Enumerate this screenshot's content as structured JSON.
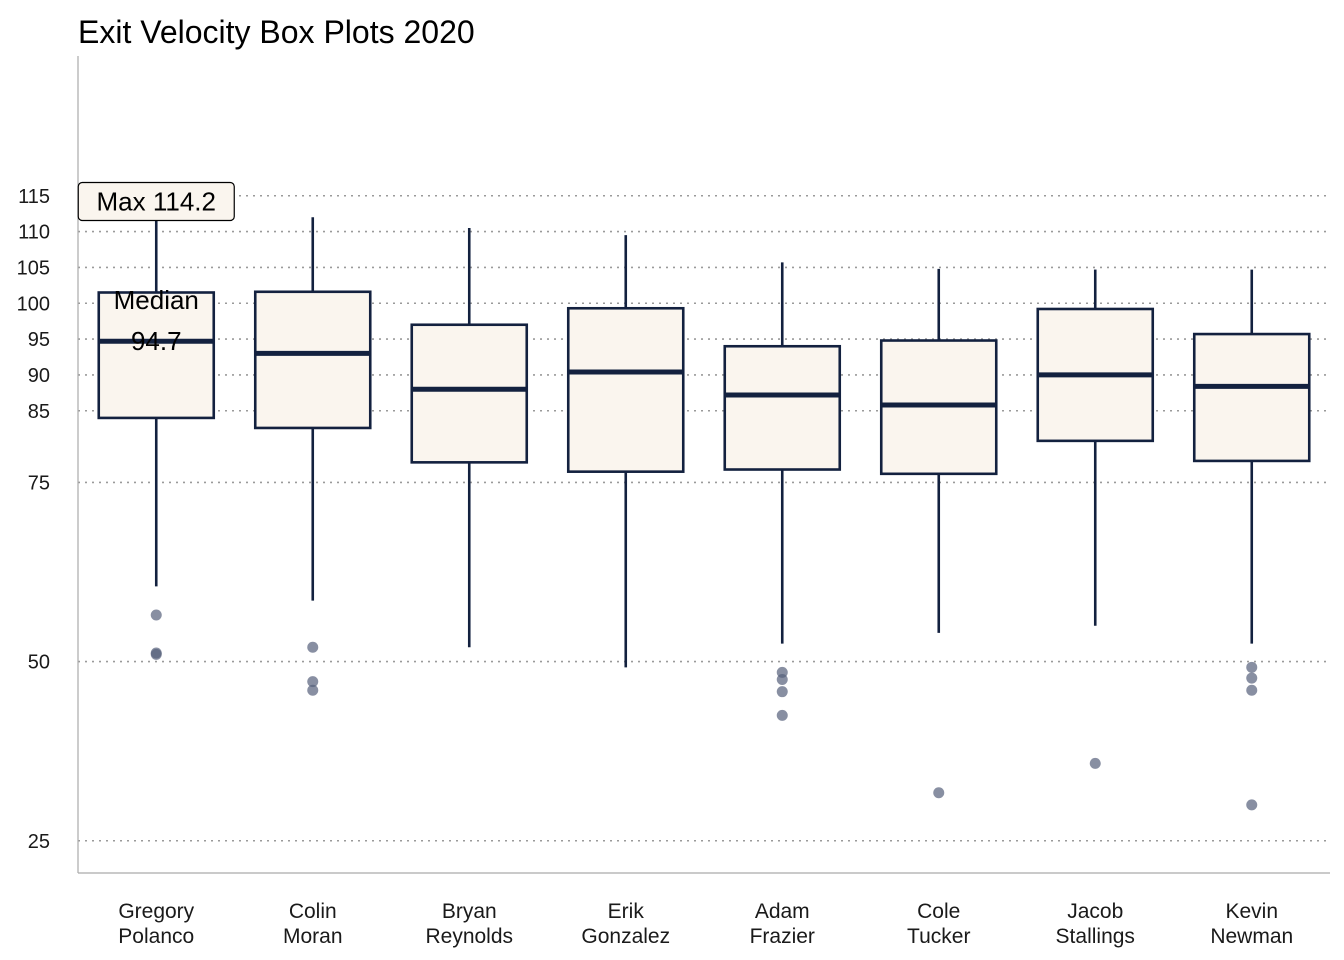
{
  "title": "Exit Velocity Box Plots 2020",
  "colors": {
    "box_fill": "#FAF5EE",
    "box_stroke": "#13213F",
    "outlier": "#56607A",
    "grid": "#9A9A9A",
    "annotation_fill": "#FAF5EE"
  },
  "chart_data": {
    "type": "box",
    "title": "Exit Velocity Box Plots 2020",
    "xlabel": "",
    "ylabel": "",
    "ylim": [
      20.5,
      134.5
    ],
    "yticks": [
      25,
      50,
      75,
      85,
      90,
      95,
      100,
      105,
      110,
      115
    ],
    "grid": "horizontal dotted",
    "categories": [
      [
        "Gregory",
        "Polanco"
      ],
      [
        "Colin",
        "Moran"
      ],
      [
        "Bryan",
        "Reynolds"
      ],
      [
        "Erik",
        "Gonzalez"
      ],
      [
        "Adam",
        "Frazier"
      ],
      [
        "Cole",
        "Tucker"
      ],
      [
        "Jacob",
        "Stallings"
      ],
      [
        "Kevin",
        "Newman"
      ]
    ],
    "boxes": [
      {
        "whisker_low": 60.5,
        "q1": 84.0,
        "median": 94.7,
        "q3": 101.5,
        "whisker_high": 114.2,
        "outliers": [
          56.5,
          51.0,
          51.2
        ]
      },
      {
        "whisker_low": 58.5,
        "q1": 82.6,
        "median": 93.0,
        "q3": 101.6,
        "whisker_high": 112.0,
        "outliers": [
          52.0,
          47.2,
          46.0
        ]
      },
      {
        "whisker_low": 52.0,
        "q1": 77.8,
        "median": 88.0,
        "q3": 97.0,
        "whisker_high": 110.5,
        "outliers": []
      },
      {
        "whisker_low": 49.2,
        "q1": 76.5,
        "median": 90.4,
        "q3": 99.3,
        "whisker_high": 109.5,
        "outliers": []
      },
      {
        "whisker_low": 52.5,
        "q1": 76.8,
        "median": 87.2,
        "q3": 94.0,
        "whisker_high": 105.7,
        "outliers": [
          48.5,
          47.5,
          45.8,
          42.5
        ]
      },
      {
        "whisker_low": 54.0,
        "q1": 76.2,
        "median": 85.8,
        "q3": 94.8,
        "whisker_high": 104.8,
        "outliers": [
          31.7
        ]
      },
      {
        "whisker_low": 55.0,
        "q1": 80.8,
        "median": 90.0,
        "q3": 99.2,
        "whisker_high": 104.7,
        "outliers": [
          35.8
        ]
      },
      {
        "whisker_low": 52.5,
        "q1": 78.0,
        "median": 88.4,
        "q3": 95.7,
        "whisker_high": 104.7,
        "outliers": [
          49.2,
          47.7,
          46.0,
          30.0
        ]
      }
    ],
    "annotations": [
      {
        "box_index": 0,
        "text": "Max 114.2",
        "value": 114.2,
        "style": "label"
      },
      {
        "box_index": 0,
        "text": [
          "Median",
          "94.7"
        ],
        "value": 94.7,
        "style": "text"
      }
    ]
  }
}
